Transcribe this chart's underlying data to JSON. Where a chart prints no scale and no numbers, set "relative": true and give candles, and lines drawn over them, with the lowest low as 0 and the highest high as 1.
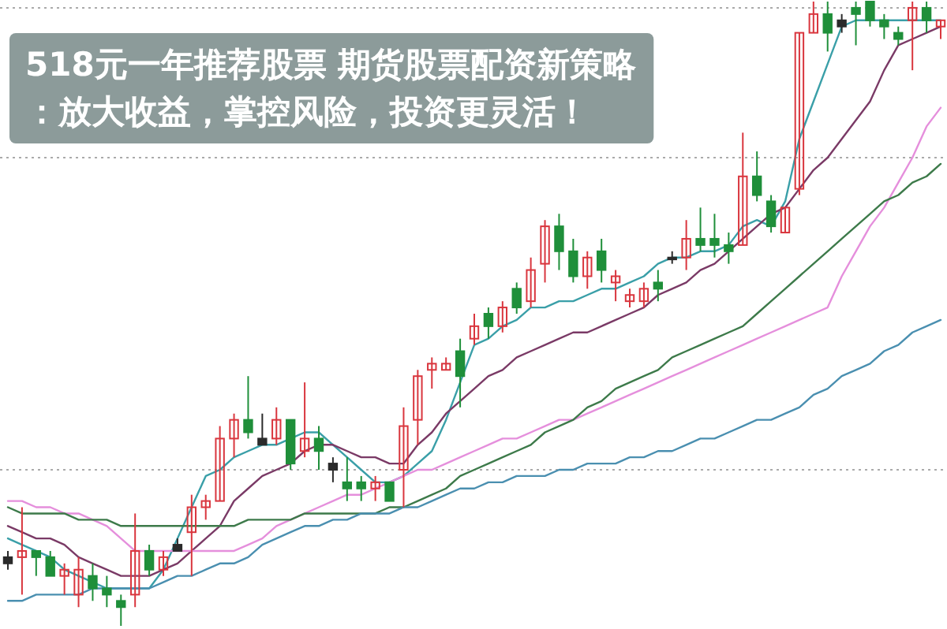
{
  "chart_data": {
    "type": "candlestick",
    "relative": true,
    "title": "518元一年推荐股票 期货股票配资新策略：放大收益，掌控风险，投资更灵活！",
    "categories": [
      null,
      null,
      null,
      null,
      null,
      null,
      null,
      null,
      null,
      null,
      null,
      null,
      null,
      null,
      null,
      null,
      null,
      null,
      null,
      null,
      null,
      null,
      null,
      null,
      null,
      null,
      null,
      null,
      null,
      null,
      null,
      null,
      null,
      null,
      null,
      null,
      null,
      null,
      null,
      null,
      null,
      null,
      null,
      null,
      null,
      null,
      null,
      null,
      null,
      null,
      null,
      null,
      null,
      null,
      null,
      null,
      null,
      null,
      null,
      null,
      null,
      null,
      null,
      null,
      null,
      null,
      null
    ],
    "ohlc": [
      [
        0.11,
        0.12,
        0.09,
        0.1
      ],
      [
        0.11,
        0.19,
        0.05,
        0.12
      ],
      [
        0.12,
        0.12,
        0.08,
        0.11
      ],
      [
        0.11,
        0.12,
        0.08,
        0.08
      ],
      [
        0.08,
        0.1,
        0.05,
        0.09
      ],
      [
        0.05,
        0.11,
        0.03,
        0.09
      ],
      [
        0.08,
        0.1,
        0.04,
        0.06
      ],
      [
        0.06,
        0.08,
        0.03,
        0.05
      ],
      [
        0.04,
        0.05,
        0,
        0.03
      ],
      [
        0.05,
        0.18,
        0.03,
        0.12
      ],
      [
        0.12,
        0.13,
        0.08,
        0.09
      ],
      [
        0.09,
        0.12,
        0.08,
        0.11
      ],
      [
        0.13,
        0.14,
        0.12,
        0.12
      ],
      [
        0.15,
        0.21,
        0.08,
        0.19
      ],
      [
        0.19,
        0.21,
        0.17,
        0.2
      ],
      [
        0.2,
        0.32,
        0.2,
        0.3
      ],
      [
        0.3,
        0.34,
        0.27,
        0.33
      ],
      [
        0.33,
        0.4,
        0.3,
        0.31
      ],
      [
        0.3,
        0.34,
        0.29,
        0.29
      ],
      [
        0.3,
        0.35,
        0.29,
        0.33
      ],
      [
        0.33,
        0.33,
        0.25,
        0.26
      ],
      [
        0.28,
        0.39,
        0.27,
        0.3
      ],
      [
        0.3,
        0.32,
        0.25,
        0.28
      ],
      [
        0.26,
        0.27,
        0.23,
        0.25
      ],
      [
        0.23,
        0.27,
        0.2,
        0.22
      ],
      [
        0.23,
        0.24,
        0.2,
        0.22
      ],
      [
        0.22,
        0.24,
        0.2,
        0.23
      ],
      [
        0.23,
        0.23,
        0.2,
        0.2
      ],
      [
        0.25,
        0.35,
        0.19,
        0.32
      ],
      [
        0.33,
        0.41,
        0.29,
        0.4
      ],
      [
        0.41,
        0.43,
        0.38,
        0.42
      ],
      [
        0.41,
        0.43,
        0.41,
        0.42
      ],
      [
        0.44,
        0.46,
        0.35,
        0.4
      ],
      [
        0.46,
        0.5,
        0.45,
        0.48
      ],
      [
        0.5,
        0.51,
        0.46,
        0.48
      ],
      [
        0.48,
        0.52,
        0.47,
        0.51
      ],
      [
        0.54,
        0.55,
        0.5,
        0.51
      ],
      [
        0.52,
        0.59,
        0.51,
        0.57
      ],
      [
        0.58,
        0.65,
        0.55,
        0.64
      ],
      [
        0.64,
        0.66,
        0.57,
        0.6
      ],
      [
        0.6,
        0.62,
        0.55,
        0.56
      ],
      [
        0.56,
        0.6,
        0.54,
        0.59
      ],
      [
        0.6,
        0.62,
        0.55,
        0.57
      ],
      [
        0.55,
        0.57,
        0.52,
        0.56
      ],
      [
        0.52,
        0.54,
        0.51,
        0.53
      ],
      [
        0.52,
        0.55,
        0.51,
        0.54
      ],
      [
        0.55,
        0.57,
        0.52,
        0.54
      ],
      [
        0.59,
        0.6,
        0.58,
        0.59
      ],
      [
        0.59,
        0.65,
        0.57,
        0.62
      ],
      [
        0.62,
        0.67,
        0.6,
        0.61
      ],
      [
        0.62,
        0.66,
        0.59,
        0.61
      ],
      [
        0.61,
        0.63,
        0.58,
        0.6
      ],
      [
        0.61,
        0.79,
        0.61,
        0.72
      ],
      [
        0.72,
        0.76,
        0.68,
        0.69
      ],
      [
        0.68,
        0.69,
        0.63,
        0.64
      ],
      [
        0.63,
        0.67,
        0.63,
        0.67
      ],
      [
        0.7,
        0.95,
        0.69,
        0.95
      ],
      [
        0.95,
        1,
        0.95,
        0.98
      ],
      [
        0.98,
        1,
        0.92,
        0.95
      ],
      [
        0.97,
        0.98,
        0.95,
        0.96
      ],
      [
        0.99,
        1,
        0.93,
        0.98
      ],
      [
        1,
        1,
        0.96,
        0.97
      ],
      [
        0.97,
        0.98,
        0.94,
        0.96
      ],
      [
        0.95,
        0.96,
        0.93,
        0.94
      ],
      [
        0.97,
        1,
        0.89,
        0.99
      ],
      [
        0.99,
        1,
        0.95,
        0.97
      ],
      [
        0.96,
        0.97,
        0.94,
        0.97
      ]
    ],
    "colors": [
      "#2b2b2b",
      "#d9363e",
      "#1f8f3a",
      "#1f8f3a",
      "#d9363e",
      "#d9363e",
      "#1f8f3a",
      "#1f8f3a",
      "#1f8f3a",
      "#d9363e",
      "#1f8f3a",
      "#d9363e",
      "#2b2b2b",
      "#d9363e",
      "#d9363e",
      "#d9363e",
      "#d9363e",
      "#1f8f3a",
      "#2b2b2b",
      "#d9363e",
      "#1f8f3a",
      "#d9363e",
      "#1f8f3a",
      "#2b2b2b",
      "#1f8f3a",
      "#1f8f3a",
      "#d9363e",
      "#1f8f3a",
      "#d9363e",
      "#d9363e",
      "#d9363e",
      "#d9363e",
      "#1f8f3a",
      "#d9363e",
      "#1f8f3a",
      "#d9363e",
      "#1f8f3a",
      "#d9363e",
      "#d9363e",
      "#1f8f3a",
      "#1f8f3a",
      "#d9363e",
      "#1f8f3a",
      "#d9363e",
      "#d9363e",
      "#d9363e",
      "#1f8f3a",
      "#2b2b2b",
      "#d9363e",
      "#1f8f3a",
      "#1f8f3a",
      "#1f8f3a",
      "#d9363e",
      "#1f8f3a",
      "#1f8f3a",
      "#d9363e",
      "#d9363e",
      "#d9363e",
      "#1f8f3a",
      "#2b2b2b",
      "#1f8f3a",
      "#1f8f3a",
      "#1f8f3a",
      "#1f8f3a",
      "#d9363e",
      "#1f8f3a",
      "#d9363e"
    ],
    "series": [
      {
        "type": "line",
        "color": "#3a9fa8",
        "values": [
          0.14,
          0.13,
          0.12,
          0.11,
          0.09,
          0.08,
          0.07,
          0.06,
          0.06,
          0.06,
          0.06,
          0.09,
          0.14,
          0.19,
          0.24,
          0.25,
          0.27,
          0.28,
          0.29,
          0.29,
          0.3,
          0.31,
          0.31,
          0.29,
          0.27,
          0.25,
          0.23,
          0.23,
          0.24,
          0.26,
          0.28,
          0.33,
          0.39,
          0.45,
          0.46,
          0.48,
          0.49,
          0.51,
          0.51,
          0.52,
          0.52,
          0.53,
          0.54,
          0.54,
          0.55,
          0.56,
          0.58,
          0.59,
          0.59,
          0.6,
          0.6,
          0.61,
          0.64,
          0.65,
          0.64,
          0.68,
          0.78,
          0.84,
          0.9,
          0.96,
          0.97,
          0.97,
          0.97,
          0.97,
          0.97,
          0.97,
          0.97
        ]
      },
      {
        "type": "line",
        "color": "#7a3a66",
        "values": [
          0.16,
          0.15,
          0.14,
          0.14,
          0.13,
          0.11,
          0.1,
          0.09,
          0.08,
          0.08,
          0.08,
          0.09,
          0.1,
          0.12,
          0.14,
          0.16,
          0.2,
          0.22,
          0.24,
          0.25,
          0.26,
          0.28,
          0.29,
          0.29,
          0.28,
          0.27,
          0.27,
          0.26,
          0.26,
          0.29,
          0.31,
          0.34,
          0.36,
          0.38,
          0.4,
          0.41,
          0.43,
          0.44,
          0.45,
          0.46,
          0.47,
          0.47,
          0.48,
          0.49,
          0.5,
          0.51,
          0.53,
          0.54,
          0.55,
          0.57,
          0.58,
          0.6,
          0.62,
          0.64,
          0.66,
          0.67,
          0.7,
          0.73,
          0.75,
          0.78,
          0.81,
          0.84,
          0.89,
          0.93,
          0.94,
          0.95,
          0.96
        ]
      },
      {
        "type": "line",
        "color": "#e58fdc",
        "values": [
          0.2,
          0.2,
          0.19,
          0.19,
          0.18,
          0.18,
          0.17,
          0.16,
          0.14,
          0.12,
          0.12,
          0.12,
          0.12,
          0.12,
          0.12,
          0.12,
          0.12,
          0.13,
          0.14,
          0.16,
          0.17,
          0.18,
          0.19,
          0.2,
          0.21,
          0.21,
          0.22,
          0.23,
          0.24,
          0.25,
          0.25,
          0.26,
          0.27,
          0.28,
          0.29,
          0.3,
          0.3,
          0.31,
          0.32,
          0.33,
          0.33,
          0.34,
          0.35,
          0.36,
          0.37,
          0.38,
          0.39,
          0.4,
          0.41,
          0.42,
          0.43,
          0.44,
          0.45,
          0.46,
          0.47,
          0.48,
          0.49,
          0.5,
          0.51,
          0.56,
          0.6,
          0.64,
          0.67,
          0.71,
          0.75,
          0.8,
          0.83
        ]
      },
      {
        "type": "line",
        "color": "#3d7a4a",
        "values": [
          0.19,
          0.18,
          0.18,
          0.18,
          0.18,
          0.17,
          0.17,
          0.17,
          0.16,
          0.16,
          0.16,
          0.16,
          0.16,
          0.16,
          0.16,
          0.16,
          0.16,
          0.17,
          0.17,
          0.17,
          0.17,
          0.18,
          0.18,
          0.18,
          0.18,
          0.18,
          0.18,
          0.19,
          0.19,
          0.2,
          0.21,
          0.22,
          0.24,
          0.25,
          0.26,
          0.27,
          0.28,
          0.29,
          0.31,
          0.32,
          0.33,
          0.35,
          0.36,
          0.38,
          0.39,
          0.4,
          0.41,
          0.43,
          0.44,
          0.45,
          0.46,
          0.47,
          0.48,
          0.5,
          0.52,
          0.54,
          0.56,
          0.58,
          0.6,
          0.62,
          0.64,
          0.66,
          0.68,
          0.69,
          0.71,
          0.72,
          0.74
        ]
      },
      {
        "type": "line",
        "color": "#4a8fb0",
        "values": [
          0.04,
          0.04,
          0.05,
          0.05,
          0.05,
          0.05,
          0.06,
          0.06,
          0.06,
          0.06,
          0.06,
          0.07,
          0.08,
          0.08,
          0.09,
          0.1,
          0.1,
          0.11,
          0.13,
          0.14,
          0.15,
          0.16,
          0.16,
          0.17,
          0.17,
          0.18,
          0.18,
          0.18,
          0.19,
          0.19,
          0.2,
          0.21,
          0.22,
          0.22,
          0.23,
          0.23,
          0.24,
          0.24,
          0.24,
          0.25,
          0.25,
          0.26,
          0.26,
          0.26,
          0.27,
          0.27,
          0.28,
          0.28,
          0.29,
          0.3,
          0.3,
          0.31,
          0.32,
          0.33,
          0.33,
          0.34,
          0.35,
          0.37,
          0.38,
          0.4,
          0.41,
          0.42,
          0.44,
          0.45,
          0.47,
          0.48,
          0.49
        ]
      }
    ],
    "ref_lines": [
      {
        "axis": "y",
        "value": 0.99,
        "color": "#aaaaaa",
        "line_style": "dotted"
      },
      {
        "axis": "y",
        "value": 0.75,
        "color": "#aaaaaa",
        "line_style": "dotted"
      },
      {
        "axis": "y",
        "value": 0.25,
        "color": "#aaaaaa",
        "line_style": "dotted"
      }
    ]
  }
}
